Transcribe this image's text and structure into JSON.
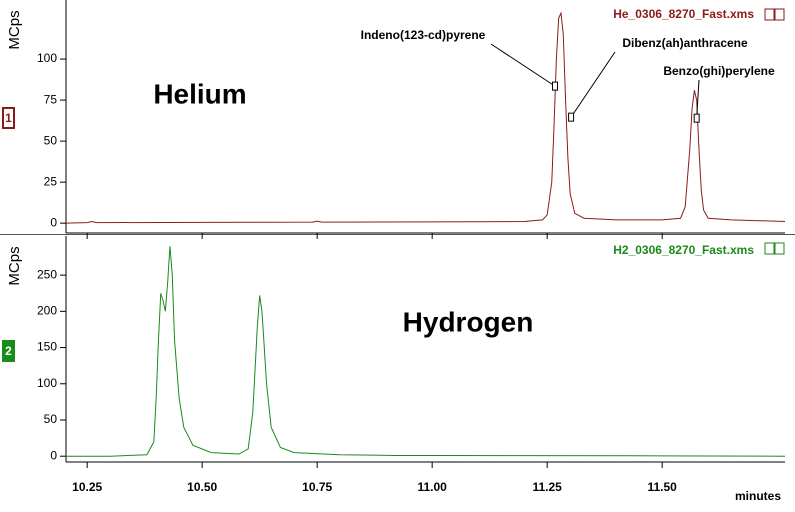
{
  "chart_data": [
    {
      "type": "line",
      "title": "He_0306_8270_Fast.xms",
      "label": "Helium",
      "ylabel": "MCps",
      "panel": "1",
      "color": "#8b1a1a",
      "x": [
        10.204,
        10.25,
        10.26,
        10.27,
        10.5,
        10.74,
        10.75,
        10.76,
        11.0,
        11.2,
        11.24,
        11.25,
        11.26,
        11.265,
        11.27,
        11.275,
        11.28,
        11.285,
        11.29,
        11.295,
        11.3,
        11.31,
        11.33,
        11.4,
        11.5,
        11.54,
        11.55,
        11.56,
        11.565,
        11.57,
        11.575,
        11.58,
        11.585,
        11.59,
        11.6,
        11.65,
        11.767
      ],
      "values": [
        0,
        0.3,
        1,
        0.3,
        0.5,
        0.6,
        1.2,
        0.6,
        0.8,
        1,
        2,
        5,
        25,
        60,
        100,
        125,
        128,
        115,
        75,
        40,
        18,
        6,
        3,
        2,
        2,
        3,
        10,
        45,
        70,
        81,
        75,
        45,
        20,
        8,
        3,
        2,
        1
      ],
      "xlim": [
        10.204,
        11.767
      ],
      "ylim": [
        -6,
        136
      ],
      "yticks": [
        0,
        25,
        50,
        75,
        100
      ],
      "annotations": [
        {
          "text": "Indeno(123-cd)pyrene",
          "x": 11.267,
          "y": 83.5
        },
        {
          "text": "Dibenz(ah)anthracene",
          "x": 11.302,
          "y": 64.6
        },
        {
          "text": "Benzo(ghi)perylene",
          "x": 11.575,
          "y": 64
        }
      ]
    },
    {
      "type": "line",
      "title": "H2_0306_8270_Fast.xms",
      "label": "Hydrogen",
      "ylabel": "MCps",
      "panel": "2",
      "color": "#1a8a1a",
      "xlabel": "minutes",
      "x": [
        10.204,
        10.3,
        10.38,
        10.395,
        10.4,
        10.405,
        10.41,
        10.415,
        10.42,
        10.425,
        10.43,
        10.435,
        10.44,
        10.45,
        10.46,
        10.48,
        10.52,
        10.58,
        10.6,
        10.61,
        10.62,
        10.625,
        10.63,
        10.64,
        10.65,
        10.67,
        10.7,
        10.8,
        10.92,
        11.0,
        11.5,
        11.767
      ],
      "values": [
        0,
        0,
        2,
        20,
        80,
        160,
        225,
        215,
        200,
        240,
        290,
        250,
        160,
        80,
        40,
        15,
        5,
        3,
        10,
        60,
        180,
        222,
        200,
        100,
        40,
        12,
        5,
        2,
        1,
        1,
        0.5,
        0
      ],
      "xlim": [
        10.204,
        11.767
      ],
      "ylim": [
        -8,
        304
      ],
      "yticks": [
        0,
        50,
        100,
        150,
        200,
        250
      ],
      "xticks": [
        10.25,
        {
          "value": 10.5,
          "label": "10.50"
        },
        10.75,
        {
          "value": 11,
          "label": "11.00"
        },
        11.25,
        {
          "value": 11.5,
          "label": "11.50"
        }
      ]
    }
  ]
}
